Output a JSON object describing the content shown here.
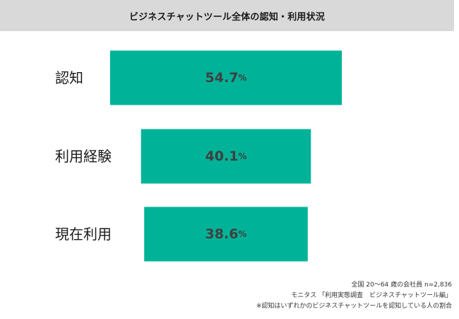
{
  "header": {
    "title": "ビジネスチャットツール全体の認知・利用状況"
  },
  "chart_data": {
    "type": "bar",
    "orientation": "horizontal",
    "categories": [
      "認知",
      "利用経験",
      "現在利用"
    ],
    "values": [
      54.7,
      40.1,
      38.6
    ],
    "value_suffix": "%",
    "series": [
      {
        "values": [
          54.7,
          40.1,
          38.6
        ],
        "color": "#00b398"
      }
    ],
    "title": "ビジネスチャットツール全体の認知・利用状況",
    "xlabel": "",
    "ylabel": "",
    "grid": false,
    "legend": "none",
    "colors": {
      "bar": "#00b398",
      "value_label": "#3f3f3f",
      "category_label": "#1a1a1a"
    }
  },
  "notes": {
    "sample": "全国 20～64 歳の会社員 n=2,836",
    "source": "モニタス 「利用実態調査　ビジネスチャットツール編」",
    "footnote": "※認知はいずれかのビジネスチャットツールを認知している人の割合"
  }
}
